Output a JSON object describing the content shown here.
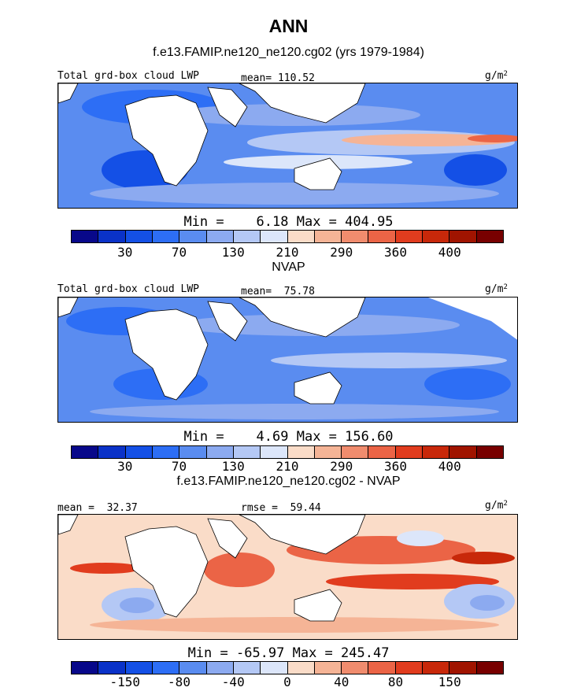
{
  "title": "ANN",
  "subtitle": "f.e13.FAMIP.ne120_ne120.cg02 (yrs 1979-1984)",
  "units_base": "g/m",
  "units_exp": "2",
  "palette": [
    "#08088a",
    "#0a32c8",
    "#1450e6",
    "#2d6ef5",
    "#5a8cf0",
    "#8caaf0",
    "#b4c8f5",
    "#dce6fa",
    "#fadcc8",
    "#f5b496",
    "#f08c6e",
    "#eb6446",
    "#e13c1e",
    "#c8280a",
    "#a01400",
    "#780000"
  ],
  "panels": [
    {
      "heading": "",
      "left_label": "Total grd-box cloud LWP",
      "right_label": "mean= 110.52",
      "minmax": "Min =    6.18 Max = 404.95",
      "ticks": [
        "30",
        "70",
        "130",
        "210",
        "290",
        "360",
        "400"
      ],
      "field_range": [
        6.18,
        404.95
      ]
    },
    {
      "heading": "NVAP",
      "left_label": "Total grd-box cloud LWP",
      "right_label": "mean=  75.78",
      "minmax": "Min =    4.69 Max = 156.60",
      "ticks": [
        "30",
        "70",
        "130",
        "210",
        "290",
        "360",
        "400"
      ],
      "field_range": [
        4.69,
        156.6
      ]
    },
    {
      "heading": "f.e13.FAMIP.ne120_ne120.cg02 - NVAP",
      "left_label": "mean =  32.37",
      "right_label": "rmse =  59.44",
      "minmax": "Min = -65.97 Max = 245.47",
      "ticks": [
        "-150",
        "-80",
        "-40",
        "0",
        "40",
        "80",
        "150"
      ],
      "field_range": [
        -65.97,
        245.47
      ]
    }
  ]
}
